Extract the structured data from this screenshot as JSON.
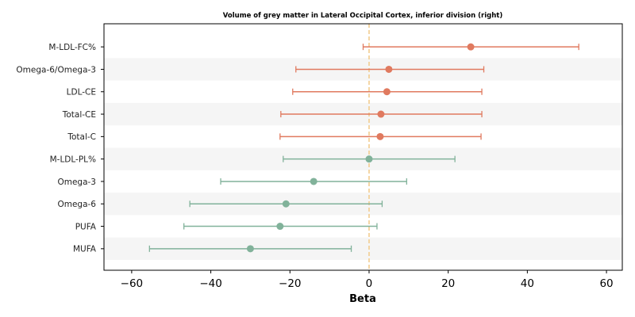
{
  "chart_data": {
    "type": "forest",
    "title": "Volume of grey matter in Lateral Occipital Cortex, inferior division (right)",
    "xlabel": "Beta",
    "ylabel": "",
    "xlim": [
      -67,
      64
    ],
    "xticks": [
      -60,
      -40,
      -20,
      0,
      20,
      40,
      60
    ],
    "xtick_labels": [
      "−60",
      "−40",
      "−20",
      "0",
      "20",
      "40",
      "60"
    ],
    "reference_line": 0,
    "grid": false,
    "row_striping": true,
    "colors": {
      "positive": "#E07A5F",
      "negative": "#81B29A",
      "reference_line": "#F2CC8F",
      "stripe": "#F5F5F5"
    },
    "rows": [
      {
        "label": "M-LDL-FC%",
        "beta": 25.7,
        "lower": -1.5,
        "upper": 53.0,
        "group": "positive"
      },
      {
        "label": "Omega-6/Omega-3",
        "beta": 5.0,
        "lower": -18.5,
        "upper": 29.0,
        "group": "positive"
      },
      {
        "label": "LDL-CE",
        "beta": 4.5,
        "lower": -19.3,
        "upper": 28.5,
        "group": "positive"
      },
      {
        "label": "Total-CE",
        "beta": 3.0,
        "lower": -22.3,
        "upper": 28.5,
        "group": "positive"
      },
      {
        "label": "Total-C",
        "beta": 2.8,
        "lower": -22.5,
        "upper": 28.3,
        "group": "positive"
      },
      {
        "label": "M-LDL-PL%",
        "beta": 0.0,
        "lower": -21.7,
        "upper": 21.7,
        "group": "negative"
      },
      {
        "label": "Omega-3",
        "beta": -14.0,
        "lower": -37.5,
        "upper": 9.5,
        "group": "negative"
      },
      {
        "label": "Omega-6",
        "beta": -21.0,
        "lower": -45.3,
        "upper": 3.3,
        "group": "negative"
      },
      {
        "label": "PUFA",
        "beta": -22.5,
        "lower": -46.8,
        "upper": 2.0,
        "group": "negative"
      },
      {
        "label": "MUFA",
        "beta": -30.0,
        "lower": -55.5,
        "upper": -4.5,
        "group": "negative"
      }
    ]
  }
}
